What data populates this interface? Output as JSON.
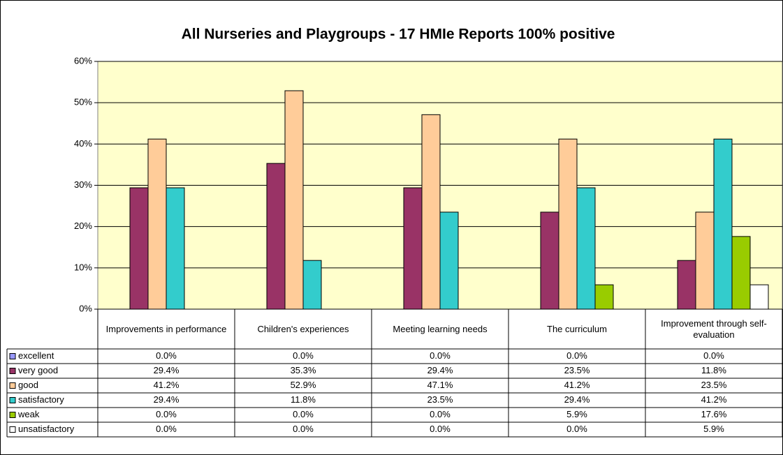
{
  "chart_data": {
    "type": "bar",
    "title": "All Nurseries and Playgroups - 17 HMIe Reports 100% positive",
    "categories": [
      "Improvements in performance",
      "Children's experiences",
      "Meeting learning needs",
      "The curriculum",
      "Improvement through self-evaluation"
    ],
    "series": [
      {
        "name": "excellent",
        "color": "#9999ff",
        "values": [
          0,
          0,
          0,
          0,
          0
        ],
        "value_labels": [
          "0.0%",
          "0.0%",
          "0.0%",
          "0.0%",
          "0.0%"
        ]
      },
      {
        "name": "very good",
        "color": "#993366",
        "values": [
          29.4,
          35.3,
          29.4,
          23.5,
          11.8
        ],
        "value_labels": [
          "29.4%",
          "35.3%",
          "29.4%",
          "23.5%",
          "11.8%"
        ]
      },
      {
        "name": "good",
        "color": "#ffcc99",
        "values": [
          41.2,
          52.9,
          47.1,
          41.2,
          23.5
        ],
        "value_labels": [
          "41.2%",
          "52.9%",
          "47.1%",
          "41.2%",
          "23.5%"
        ]
      },
      {
        "name": "satisfactory",
        "color": "#33cccc",
        "values": [
          29.4,
          11.8,
          23.5,
          29.4,
          41.2
        ],
        "value_labels": [
          "29.4%",
          "11.8%",
          "23.5%",
          "29.4%",
          "41.2%"
        ]
      },
      {
        "name": "weak",
        "color": "#99cc00",
        "values": [
          0,
          0,
          0,
          5.9,
          17.6
        ],
        "value_labels": [
          "0.0%",
          "0.0%",
          "0.0%",
          "5.9%",
          "17.6%"
        ]
      },
      {
        "name": "unsatisfactory",
        "color": "#ffffff",
        "values": [
          0,
          0,
          0,
          0,
          5.9
        ],
        "value_labels": [
          "0.0%",
          "0.0%",
          "0.0%",
          "0.0%",
          "5.9%"
        ]
      }
    ],
    "ylim": [
      0,
      60
    ],
    "yticks": [
      {
        "value": 0,
        "label": "0%"
      },
      {
        "value": 10,
        "label": "10%"
      },
      {
        "value": 20,
        "label": "20%"
      },
      {
        "value": 30,
        "label": "30%"
      },
      {
        "value": 40,
        "label": "40%"
      },
      {
        "value": 50,
        "label": "50%"
      },
      {
        "value": 60,
        "label": "60%"
      }
    ],
    "grid": true,
    "plot_background": "#ffffcc"
  }
}
